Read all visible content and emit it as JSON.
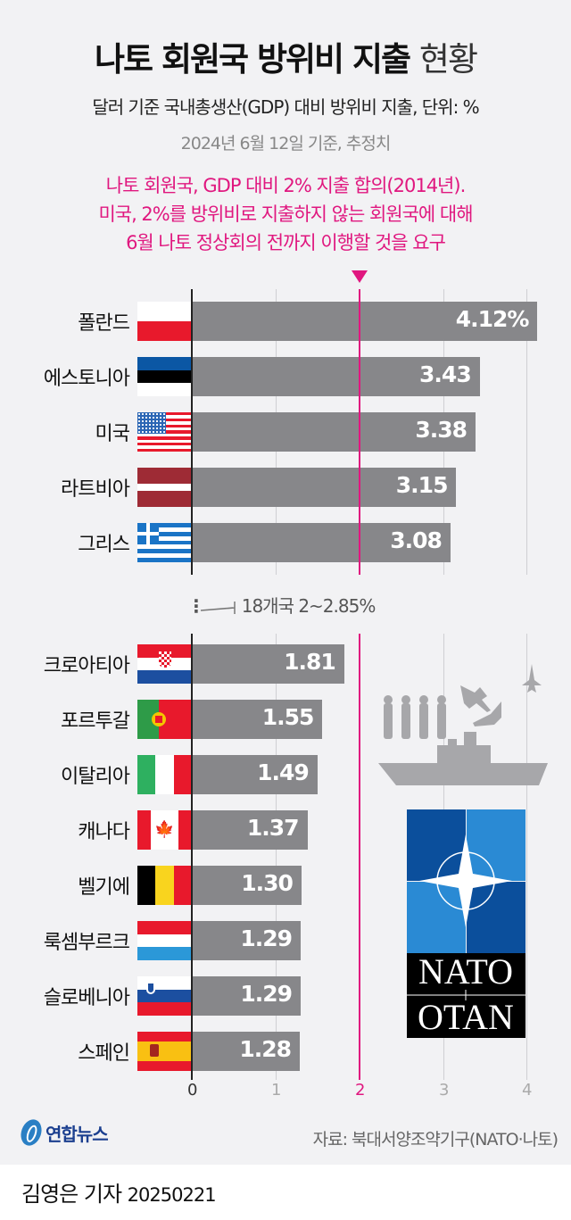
{
  "header": {
    "title_bold": "나토 회원국 방위비 지출",
    "title_light": "현황",
    "subtitle": "달러 기준 국내총생산(GDP) 대비 방위비 지출, 단위: %",
    "date_note": "2024년 6월 12일 기준, 추정치",
    "highlight_lines": [
      "나토 회원국, GDP 대비 2% 지출 합의(2014년).",
      "미국, 2%를 방위비로 지출하지 않는 회원국에 대해",
      "6월 나토 정상회의 전까지 이행할 것을 요구"
    ]
  },
  "colors": {
    "accent": "#e0177f",
    "bar": "#87878a",
    "background": "#f2f2f4",
    "nato_blue_dark": "#0b4f9c",
    "nato_blue_light": "#2a8ad4"
  },
  "gap_note": "18개국 2~2.85%",
  "axis": {
    "ticks": [
      "0",
      "1",
      "2",
      "3",
      "4"
    ]
  },
  "footer": {
    "logo_text": "연합뉴스",
    "source": "자료: 북대서양조약기구(NATO·나토)",
    "byline": "김영은 기자",
    "byline_date": "20250221"
  },
  "nato_logo": {
    "line1": "NATO",
    "line2": "OTAN"
  },
  "chart_data": {
    "type": "bar",
    "orientation": "horizontal",
    "title": "나토 회원국 방위비 지출 현황",
    "subtitle": "달러 기준 국내총생산(GDP) 대비 방위비 지출, 단위: %",
    "xlabel": "",
    "ylabel": "",
    "xlim": [
      0,
      4
    ],
    "reference_line": {
      "value": 2,
      "label": "2% target"
    },
    "categories": [
      "폴란드",
      "에스토니아",
      "미국",
      "라트비아",
      "그리스",
      "크로아티아",
      "포르투갈",
      "이탈리아",
      "캐나다",
      "벨기에",
      "룩셈부르크",
      "슬로베니아",
      "스페인"
    ],
    "values": [
      4.12,
      3.43,
      3.38,
      3.15,
      3.08,
      1.81,
      1.55,
      1.49,
      1.37,
      1.3,
      1.29,
      1.29,
      1.28
    ],
    "value_labels": [
      "4.12%",
      "3.43",
      "3.38",
      "3.15",
      "3.08",
      "1.81",
      "1.55",
      "1.49",
      "1.37",
      "1.30",
      "1.29",
      "1.29",
      "1.28"
    ],
    "annotation": "18개국 2~2.85%",
    "grid": true
  },
  "rows": [
    {
      "label": "폴란드",
      "value": "4.12%",
      "v": 4.12,
      "flag": "poland"
    },
    {
      "label": "에스토니아",
      "value": "3.43",
      "v": 3.43,
      "flag": "estonia"
    },
    {
      "label": "미국",
      "value": "3.38",
      "v": 3.38,
      "flag": "usa"
    },
    {
      "label": "라트비아",
      "value": "3.15",
      "v": 3.15,
      "flag": "latvia"
    },
    {
      "label": "그리스",
      "value": "3.08",
      "v": 3.08,
      "flag": "greece"
    },
    {
      "label": "크로아티아",
      "value": "1.81",
      "v": 1.81,
      "flag": "croatia"
    },
    {
      "label": "포르투갈",
      "value": "1.55",
      "v": 1.55,
      "flag": "portugal"
    },
    {
      "label": "이탈리아",
      "value": "1.49",
      "v": 1.49,
      "flag": "italy"
    },
    {
      "label": "캐나다",
      "value": "1.37",
      "v": 1.37,
      "flag": "canada"
    },
    {
      "label": "벨기에",
      "value": "1.30",
      "v": 1.3,
      "flag": "belgium"
    },
    {
      "label": "룩셈부르크",
      "value": "1.29",
      "v": 1.29,
      "flag": "luxembourg"
    },
    {
      "label": "슬로베니아",
      "value": "1.29",
      "v": 1.29,
      "flag": "slovenia"
    },
    {
      "label": "스페인",
      "value": "1.28",
      "v": 1.28,
      "flag": "spain"
    }
  ]
}
